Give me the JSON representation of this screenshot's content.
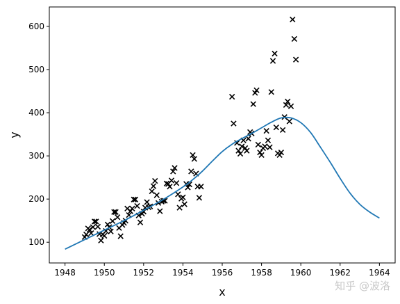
{
  "chart_data": {
    "type": "scatter",
    "title": "",
    "xlabel": "x",
    "ylabel": "y",
    "xlim": [
      1947.2,
      1964.8
    ],
    "ylim": [
      52,
      645
    ],
    "xticks": [
      1948,
      1950,
      1952,
      1954,
      1956,
      1958,
      1960,
      1962,
      1964
    ],
    "yticks": [
      100,
      200,
      300,
      400,
      500,
      600
    ],
    "grid": false,
    "series": [
      {
        "kind": "scatter",
        "marker": "x",
        "color": "#000000",
        "points": [
          [
            1949.0,
            112
          ],
          [
            1949.08,
            118
          ],
          [
            1949.17,
            132
          ],
          [
            1949.25,
            129
          ],
          [
            1949.33,
            121
          ],
          [
            1949.42,
            135
          ],
          [
            1949.5,
            148
          ],
          [
            1949.58,
            148
          ],
          [
            1949.67,
            136
          ],
          [
            1949.75,
            119
          ],
          [
            1949.83,
            104
          ],
          [
            1949.92,
            118
          ],
          [
            1950.0,
            115
          ],
          [
            1950.08,
            126
          ],
          [
            1950.17,
            141
          ],
          [
            1950.25,
            135
          ],
          [
            1950.33,
            125
          ],
          [
            1950.42,
            149
          ],
          [
            1950.5,
            170
          ],
          [
            1950.58,
            170
          ],
          [
            1950.67,
            158
          ],
          [
            1950.75,
            133
          ],
          [
            1950.83,
            114
          ],
          [
            1950.92,
            140
          ],
          [
            1951.0,
            145
          ],
          [
            1951.08,
            150
          ],
          [
            1951.17,
            178
          ],
          [
            1951.25,
            163
          ],
          [
            1951.33,
            172
          ],
          [
            1951.42,
            178
          ],
          [
            1951.5,
            199
          ],
          [
            1951.58,
            199
          ],
          [
            1951.67,
            184
          ],
          [
            1951.75,
            162
          ],
          [
            1951.83,
            146
          ],
          [
            1951.92,
            166
          ],
          [
            1952.0,
            171
          ],
          [
            1952.08,
            180
          ],
          [
            1952.17,
            193
          ],
          [
            1952.25,
            181
          ],
          [
            1952.33,
            183
          ],
          [
            1952.42,
            218
          ],
          [
            1952.5,
            230
          ],
          [
            1952.58,
            242
          ],
          [
            1952.67,
            209
          ],
          [
            1952.75,
            191
          ],
          [
            1952.83,
            172
          ],
          [
            1952.92,
            194
          ],
          [
            1953.0,
            196
          ],
          [
            1953.08,
            196
          ],
          [
            1953.17,
            236
          ],
          [
            1953.25,
            235
          ],
          [
            1953.33,
            229
          ],
          [
            1953.42,
            243
          ],
          [
            1953.5,
            264
          ],
          [
            1953.58,
            272
          ],
          [
            1953.67,
            237
          ],
          [
            1953.75,
            211
          ],
          [
            1953.83,
            180
          ],
          [
            1953.92,
            201
          ],
          [
            1954.0,
            204
          ],
          [
            1954.08,
            188
          ],
          [
            1954.17,
            235
          ],
          [
            1954.25,
            227
          ],
          [
            1954.33,
            234
          ],
          [
            1954.42,
            264
          ],
          [
            1954.5,
            302
          ],
          [
            1954.58,
            293
          ],
          [
            1954.67,
            259
          ],
          [
            1954.75,
            229
          ],
          [
            1954.83,
            203
          ],
          [
            1954.92,
            229
          ],
          [
            1956.5,
            437
          ],
          [
            1956.58,
            375
          ],
          [
            1956.75,
            330
          ],
          [
            1956.83,
            312
          ],
          [
            1956.92,
            305
          ],
          [
            1957.0,
            322
          ],
          [
            1957.08,
            336
          ],
          [
            1957.17,
            318
          ],
          [
            1957.25,
            312
          ],
          [
            1957.33,
            340
          ],
          [
            1957.42,
            355
          ],
          [
            1957.5,
            352
          ],
          [
            1957.58,
            420
          ],
          [
            1957.67,
            446
          ],
          [
            1957.75,
            452
          ],
          [
            1957.83,
            326
          ],
          [
            1957.92,
            308
          ],
          [
            1958.0,
            302
          ],
          [
            1958.08,
            318
          ],
          [
            1958.17,
            322
          ],
          [
            1958.25,
            358
          ],
          [
            1958.33,
            336
          ],
          [
            1958.42,
            320
          ],
          [
            1958.5,
            448
          ],
          [
            1958.58,
            520
          ],
          [
            1958.67,
            537
          ],
          [
            1958.75,
            366
          ],
          [
            1958.83,
            306
          ],
          [
            1958.92,
            302
          ],
          [
            1959.0,
            308
          ],
          [
            1959.08,
            360
          ],
          [
            1959.17,
            390
          ],
          [
            1959.25,
            418
          ],
          [
            1959.33,
            426
          ],
          [
            1959.42,
            380
          ],
          [
            1959.5,
            415
          ],
          [
            1959.58,
            616
          ],
          [
            1959.67,
            571
          ],
          [
            1959.75,
            523
          ]
        ]
      },
      {
        "kind": "line",
        "color": "#1f77b4",
        "x": [
          1948.0,
          1949.0,
          1950.0,
          1951.0,
          1952.0,
          1953.0,
          1954.0,
          1954.5,
          1955.0,
          1955.5,
          1956.0,
          1956.5,
          1957.0,
          1957.5,
          1958.0,
          1958.5,
          1959.0,
          1959.5,
          1960.0,
          1960.5,
          1961.0,
          1961.5,
          1962.0,
          1962.5,
          1963.0,
          1963.5,
          1964.0
        ],
        "y": [
          84,
          106,
          128,
          150,
          174,
          199,
          228,
          245,
          265,
          288,
          310,
          327,
          340,
          352,
          365,
          378,
          388,
          388,
          377,
          354,
          320,
          285,
          248,
          214,
          188,
          170,
          156
        ]
      }
    ]
  },
  "watermark": "知乎 @波洛"
}
